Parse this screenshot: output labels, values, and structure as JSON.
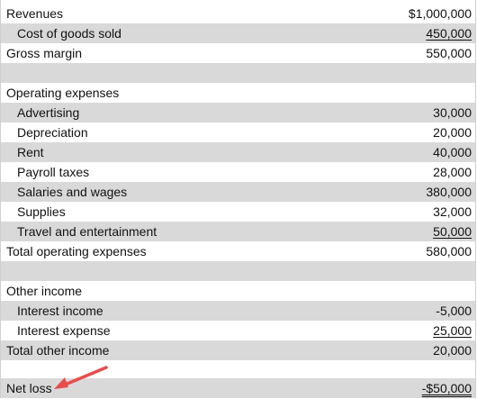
{
  "rows": [
    {
      "label": "Revenues",
      "value": "$1,000,000"
    },
    {
      "label": "Cost of goods sold",
      "value": "450,000"
    },
    {
      "label": "Gross margin",
      "value": "550,000"
    },
    {
      "label": "",
      "value": ""
    },
    {
      "label": "Operating expenses",
      "value": ""
    },
    {
      "label": "Advertising",
      "value": "30,000"
    },
    {
      "label": "Depreciation",
      "value": "20,000"
    },
    {
      "label": "Rent",
      "value": "40,000"
    },
    {
      "label": "Payroll taxes",
      "value": "28,000"
    },
    {
      "label": "Salaries and wages",
      "value": "380,000"
    },
    {
      "label": "Supplies",
      "value": "32,000"
    },
    {
      "label": "Travel and entertainment",
      "value": "50,000"
    },
    {
      "label": "Total operating expenses",
      "value": "580,000"
    },
    {
      "label": "",
      "value": ""
    },
    {
      "label": "Other income",
      "value": ""
    },
    {
      "label": "Interest income",
      "value": "-5,000"
    },
    {
      "label": "Interest expense",
      "value": "25,000"
    },
    {
      "label": "Total other income",
      "value": "20,000"
    },
    {
      "label": "",
      "value": ""
    },
    {
      "label": "Net loss",
      "value": "-$50,000"
    }
  ],
  "annotation": {
    "arrow_icon": "red-arrow-icon",
    "arrow_color": "#e84c4c"
  }
}
